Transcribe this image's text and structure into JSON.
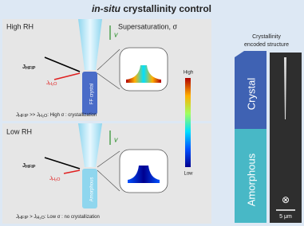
{
  "title": {
    "italic": "in-situ",
    "bold": "crystallinity control"
  },
  "top_panel": {
    "condition": "High RH",
    "axis_label": "Supersaturation, σ",
    "velocity": "v",
    "flux_hfip": [
      "J",
      "HFIP"
    ],
    "flux_h2o": [
      "J",
      "H₂O"
    ],
    "rod_label": "FF crystal",
    "caption": [
      "J",
      "HFIP",
      " >> J",
      "H₂O",
      ": High σ : crystallization"
    ]
  },
  "bottom_panel": {
    "condition": "Low RH",
    "velocity": "v",
    "flux_hfip": [
      "J",
      "HFIP"
    ],
    "flux_h2o": [
      "J",
      "H₂O"
    ],
    "rod_label": "Amorphous",
    "caption": [
      "J",
      "HFIP",
      " > J",
      "H₂O",
      ": Low σ : no crystallization"
    ]
  },
  "colorbar": {
    "high": "High",
    "low": "Low"
  },
  "structure": {
    "heading": [
      "Crystallinity",
      "encoded structure"
    ],
    "crystal": "Crystal",
    "amorphous": "Amorphous",
    "direction": "⊗",
    "scale": "5 μm"
  }
}
